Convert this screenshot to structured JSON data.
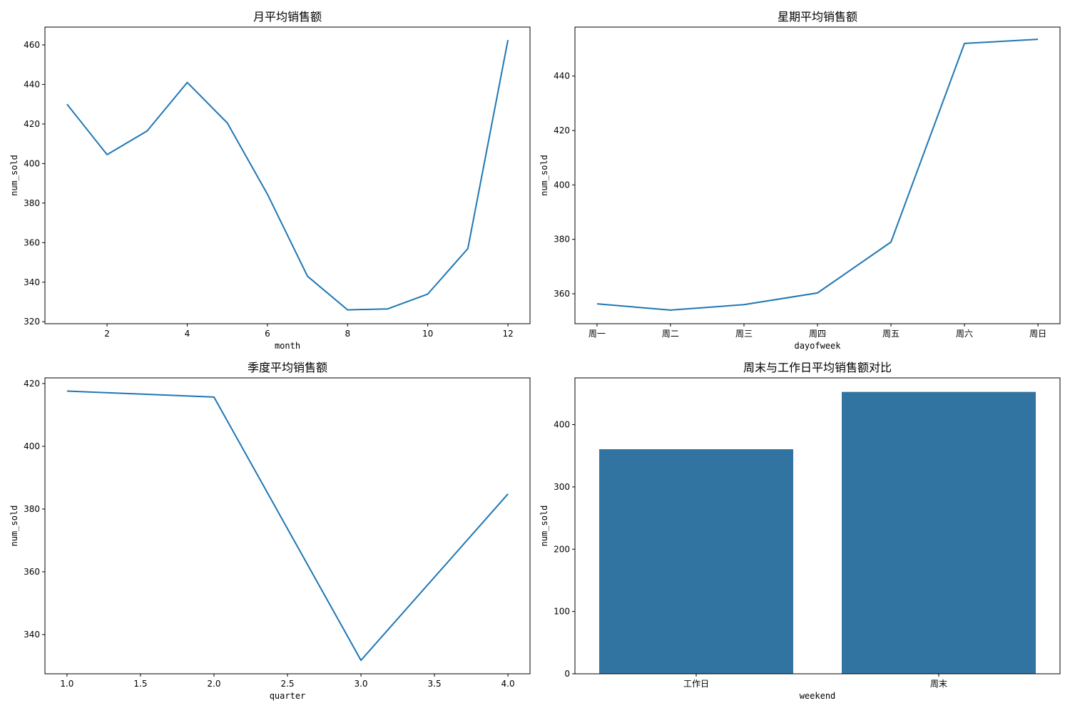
{
  "chart_data": [
    {
      "type": "line",
      "title": "月平均销售额",
      "xlabel": "month",
      "ylabel": "num_sold",
      "x": [
        1,
        2,
        3,
        4,
        5,
        6,
        7,
        8,
        9,
        10,
        11,
        12
      ],
      "series": [
        {
          "values": [
            430,
            404.5,
            416.5,
            441,
            420.5,
            384.5,
            343,
            326,
            326.5,
            334,
            357,
            462.5
          ]
        }
      ],
      "xlim": [
        0.45,
        12.55
      ],
      "ylim": [
        319,
        469
      ],
      "xticks": [
        2,
        4,
        6,
        8,
        10,
        12
      ],
      "yticks": [
        320,
        340,
        360,
        380,
        400,
        420,
        440,
        460
      ],
      "color": "#1f77b4",
      "grid": false
    },
    {
      "type": "line",
      "title": "星期平均销售额",
      "xlabel": "dayofweek",
      "ylabel": "num_sold",
      "categories": [
        "周一",
        "周二",
        "周三",
        "周四",
        "周五",
        "周六",
        "周日"
      ],
      "series": [
        {
          "values": [
            356.3,
            354,
            356,
            360.3,
            379,
            452,
            453.5
          ]
        }
      ],
      "xlim": [
        -0.3,
        6.3
      ],
      "ylim": [
        349,
        458
      ],
      "yticks": [
        360,
        380,
        400,
        420,
        440
      ],
      "color": "#1f77b4",
      "grid": false
    },
    {
      "type": "line",
      "title": "季度平均销售额",
      "xlabel": "quarter",
      "ylabel": "num_sold",
      "x": [
        1.0,
        2.0,
        3.0,
        4.0
      ],
      "series": [
        {
          "values": [
            417.6,
            415.7,
            331.8,
            384.8
          ]
        }
      ],
      "xlim": [
        0.85,
        4.15
      ],
      "ylim": [
        327.5,
        421.8
      ],
      "xticks": [
        1.0,
        1.5,
        2.0,
        2.5,
        3.0,
        3.5,
        4.0
      ],
      "xtick_labels": [
        "1.0",
        "1.5",
        "2.0",
        "2.5",
        "3.0",
        "3.5",
        "4.0"
      ],
      "yticks": [
        340,
        360,
        380,
        400,
        420
      ],
      "color": "#1f77b4",
      "grid": false
    },
    {
      "type": "bar",
      "title": "周末与工作日平均销售额对比",
      "xlabel": "weekend",
      "ylabel": "num_sold",
      "categories": [
        "工作日",
        "周末"
      ],
      "values": [
        360.5,
        452.5
      ],
      "ylim": [
        0,
        475
      ],
      "yticks": [
        0,
        100,
        200,
        300,
        400
      ],
      "color": "#3274a1",
      "grid": false
    }
  ]
}
